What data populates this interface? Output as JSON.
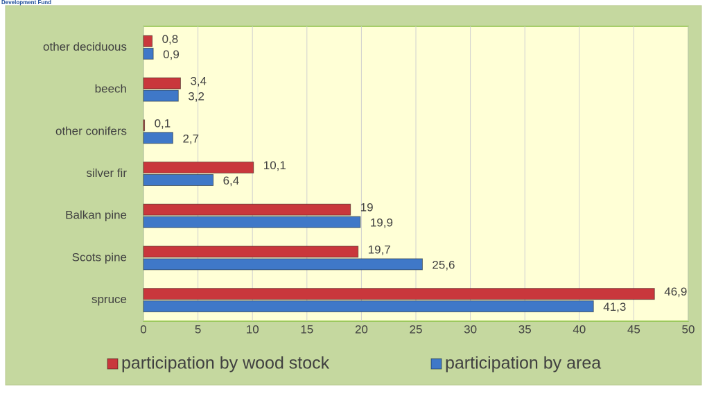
{
  "chart_data": {
    "type": "bar",
    "orientation": "horizontal",
    "note": "Development Fund",
    "categories": [
      "other deciduous",
      "beech",
      "other conifers",
      "silver fir",
      "Balkan pine",
      "Scots pine",
      "spruce"
    ],
    "series": [
      {
        "name": "participation by wood stock",
        "color": "#c9373c",
        "values": [
          0.8,
          3.4,
          0.1,
          10.1,
          19,
          19.7,
          46.9
        ],
        "value_labels": [
          "0,8",
          "3,4",
          "0,1",
          "10,1",
          "19",
          "19,7",
          "46,9"
        ]
      },
      {
        "name": "participation by area",
        "color": "#3f78c8",
        "values": [
          0.9,
          3.2,
          2.7,
          6.4,
          19.9,
          25.6,
          41.3
        ],
        "value_labels": [
          "0,9",
          "3,2",
          "2,7",
          "6,4",
          "19,9",
          "25,6",
          "41,3"
        ]
      }
    ],
    "xlim": [
      0,
      50
    ],
    "xticks": [
      0,
      5,
      10,
      15,
      20,
      25,
      30,
      35,
      40,
      45,
      50
    ],
    "grid": true,
    "legend": "bottom"
  }
}
